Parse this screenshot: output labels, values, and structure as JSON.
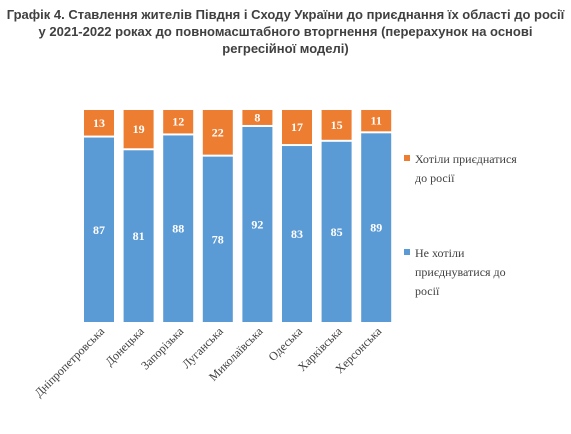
{
  "title": "Графік 4. Ставлення жителів Півдня і Сходу України до приєднання їх області до росії у 2021-2022 роках до повномасштабного вторгнення (перерахунок на основі регресійної моделі)",
  "colors": {
    "wanted": "#ed7d31",
    "not_wanted": "#5b9bd5"
  },
  "legend": {
    "wanted": "Хотіли приєднатися до росії",
    "not_wanted": "Не хотіли приєднуватися до росії"
  },
  "chart_data": {
    "type": "bar",
    "stacked": true,
    "categories": [
      "Дніпропетровська",
      "Донецька",
      "Запорізька",
      "Луганська",
      "Миколаївська",
      "Одеська",
      "Харківська",
      "Херсонська"
    ],
    "series": [
      {
        "name": "Не хотіли приєднуватися до росії",
        "values": [
          87,
          81,
          88,
          78,
          92,
          83,
          85,
          89
        ]
      },
      {
        "name": "Хотіли приєднатися до росії",
        "values": [
          13,
          19,
          12,
          22,
          8,
          17,
          15,
          11
        ]
      }
    ],
    "title": "Графік 4. Ставлення жителів Півдня і Сходу України до приєднання їх області до росії у 2021-2022 роках до повномасштабного вторгнення (перерахунок на основі регресійної моделі)",
    "ylim": [
      0,
      100
    ],
    "grid": false,
    "legend_position": "right"
  }
}
